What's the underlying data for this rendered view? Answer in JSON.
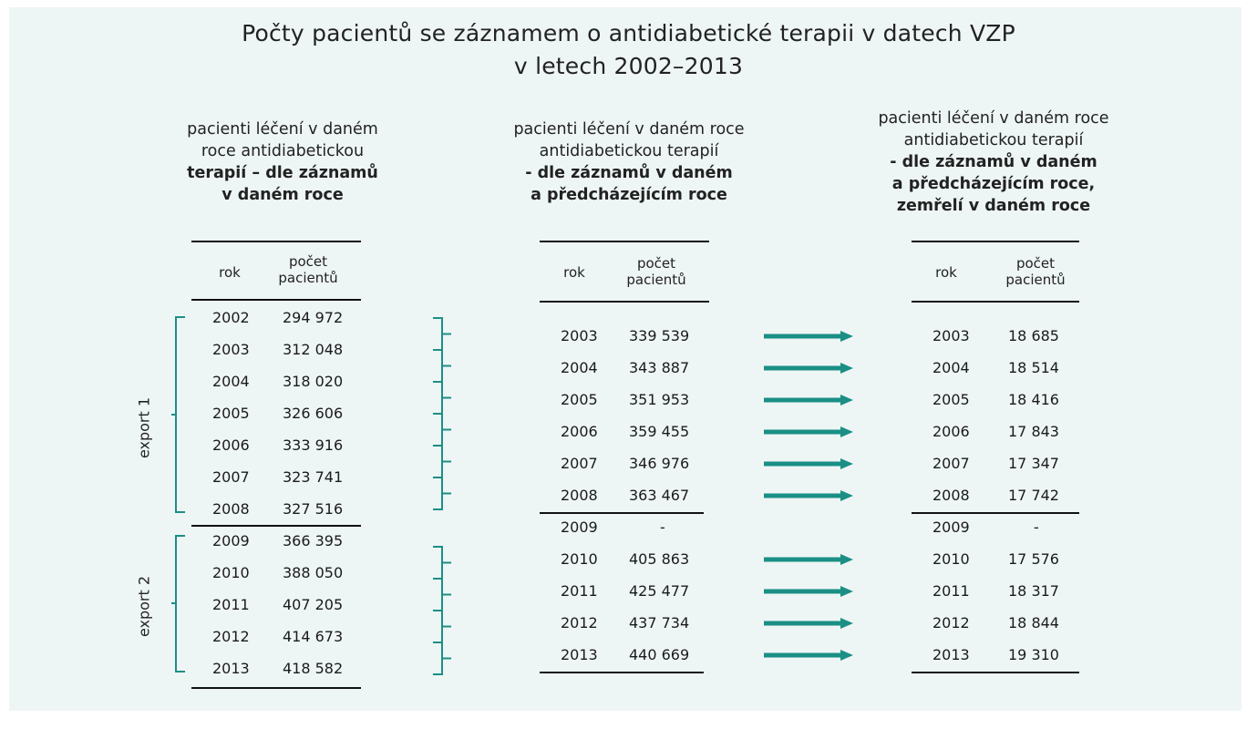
{
  "title": {
    "line1": "Počty pacientů se záznamem o antidiabetické terapii v datech VZP",
    "line2": "v letech 2002–2013"
  },
  "headers": {
    "left": [
      "pacienti léčení v daném",
      "roce antidiabetickou",
      "terapií – dle záznamů",
      "v daném roce"
    ],
    "middle": [
      "pacienti léčení v daném roce",
      "antidiabetickou terapií",
      "- dle záznamů v daném",
      "a předcházejícím roce"
    ],
    "right": [
      "pacienti léčení v daném roce",
      "antidiabetickou terapií",
      "- dle záznamů v daném",
      "a předcházejícím roce,",
      "zemřelí v daném roce"
    ]
  },
  "column_labels": {
    "year": "rok",
    "count_line1": "počet",
    "count_line2": "pacientů"
  },
  "export_labels": {
    "export1": "export 1",
    "export2": "export 2"
  },
  "left_table": [
    {
      "year": "2002",
      "count": "294 972"
    },
    {
      "year": "2003",
      "count": "312 048"
    },
    {
      "year": "2004",
      "count": "318 020"
    },
    {
      "year": "2005",
      "count": "326 606"
    },
    {
      "year": "2006",
      "count": "333 916"
    },
    {
      "year": "2007",
      "count": "323 741"
    },
    {
      "year": "2008",
      "count": "327 516"
    },
    {
      "year": "2009",
      "count": "366 395"
    },
    {
      "year": "2010",
      "count": "388 050"
    },
    {
      "year": "2011",
      "count": "407 205"
    },
    {
      "year": "2012",
      "count": "414 673"
    },
    {
      "year": "2013",
      "count": "418 582"
    }
  ],
  "middle_table": [
    {
      "year": "2003",
      "count": "339 539"
    },
    {
      "year": "2004",
      "count": "343 887"
    },
    {
      "year": "2005",
      "count": "351 953"
    },
    {
      "year": "2006",
      "count": "359 455"
    },
    {
      "year": "2007",
      "count": "346 976"
    },
    {
      "year": "2008",
      "count": "363 467"
    },
    {
      "year": "2009",
      "count": "-"
    },
    {
      "year": "2010",
      "count": "405 863"
    },
    {
      "year": "2011",
      "count": "425 477"
    },
    {
      "year": "2012",
      "count": "437 734"
    },
    {
      "year": "2013",
      "count": "440 669"
    }
  ],
  "right_table": [
    {
      "year": "2003",
      "count": "18 685"
    },
    {
      "year": "2004",
      "count": "18 514"
    },
    {
      "year": "2005",
      "count": "18 416"
    },
    {
      "year": "2006",
      "count": "17 843"
    },
    {
      "year": "2007",
      "count": "17 347"
    },
    {
      "year": "2008",
      "count": "17 742"
    },
    {
      "year": "2009",
      "count": "-"
    },
    {
      "year": "2010",
      "count": "17 576"
    },
    {
      "year": "2011",
      "count": "18 317"
    },
    {
      "year": "2012",
      "count": "18 844"
    },
    {
      "year": "2013",
      "count": "19 310"
    }
  ],
  "colors": {
    "accent_teal": "#1b8f85",
    "background": "#eef6f5",
    "rule": "#111111"
  }
}
